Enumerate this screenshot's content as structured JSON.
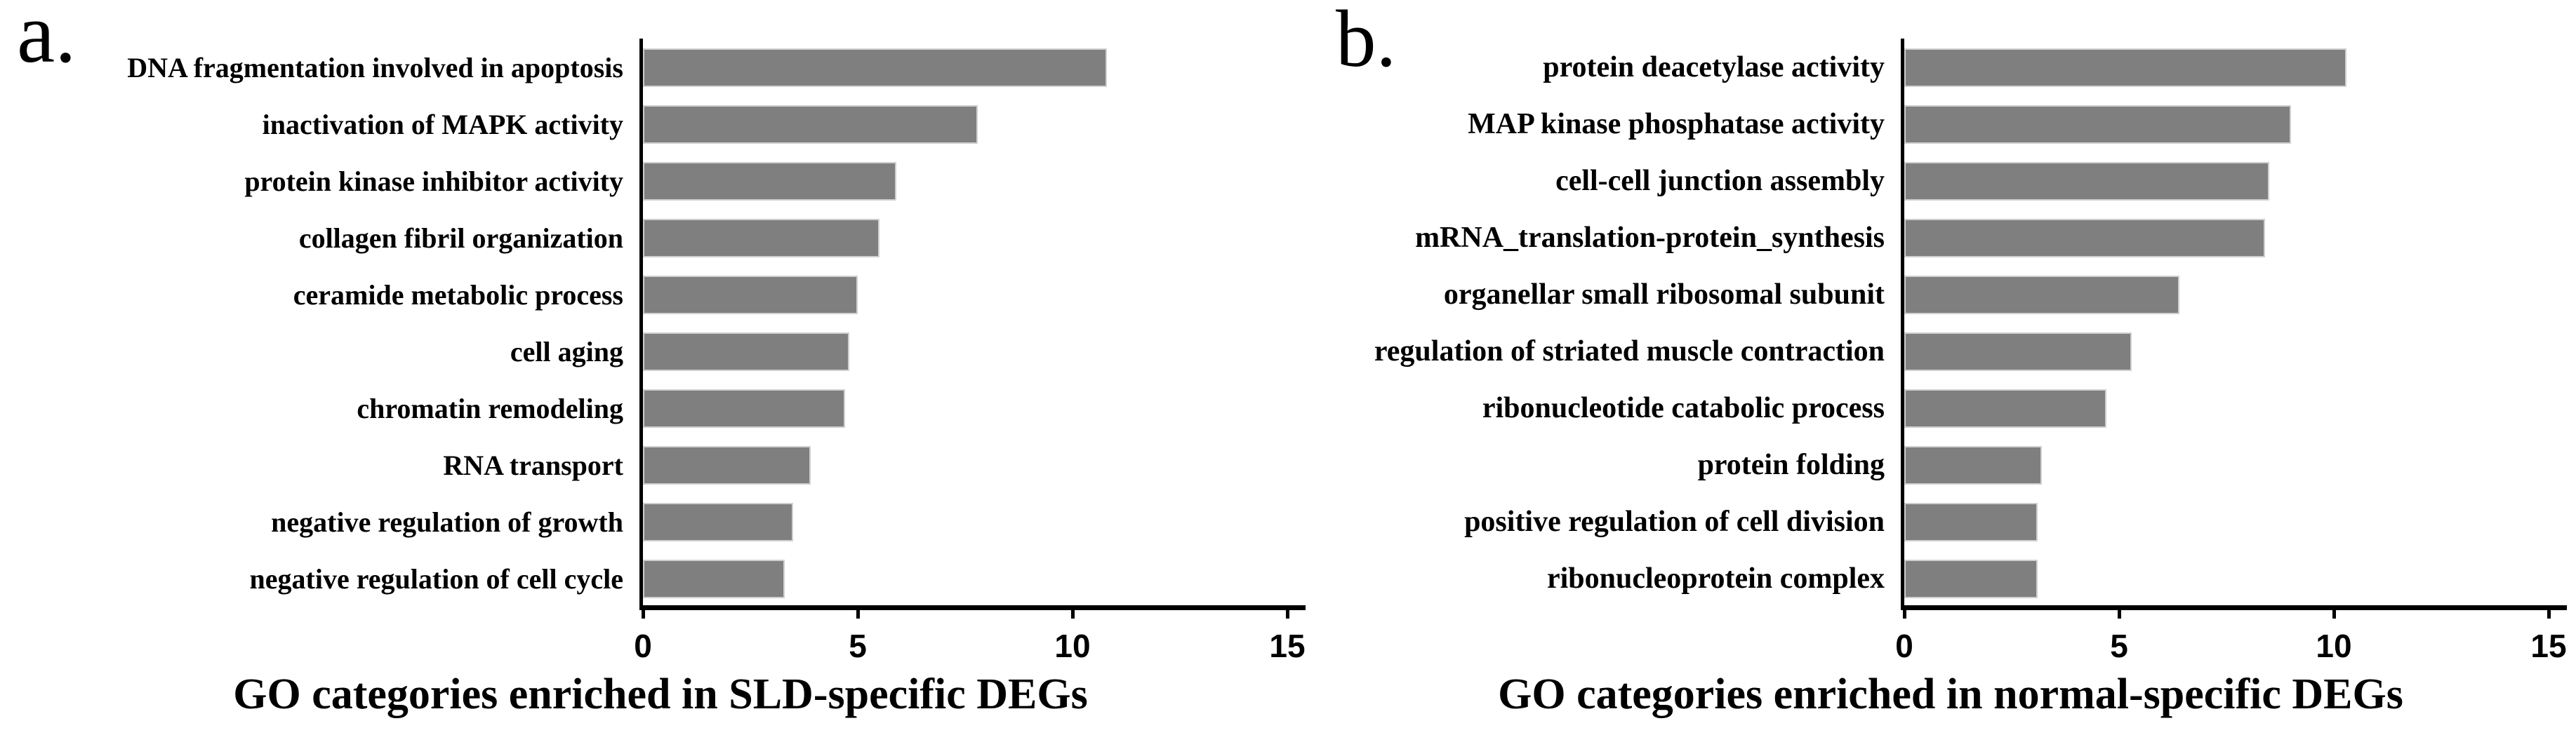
{
  "figure_kind": "two-panel horizontal bar chart of GO enrichment",
  "bar_color": "#7f7f7f",
  "bar_edge_color": "#cfcfcf",
  "axis_color": "#000000",
  "background_color": "#ffffff",
  "chart_data": [
    {
      "type": "bar",
      "orientation": "horizontal",
      "panel_letter": "a.",
      "title": "GO categories enriched in SLD-specific DEGs",
      "categories": [
        "DNA fragmentation involved in apoptosis",
        "inactivation of MAPK activity",
        "protein kinase inhibitor activity",
        "collagen fibril organization",
        "ceramide metabolic process",
        "cell aging",
        "chromatin remodeling",
        "RNA transport",
        "negative regulation of growth",
        "negative regulation of cell cycle"
      ],
      "values": [
        10.8,
        7.8,
        5.9,
        5.5,
        5.0,
        4.8,
        4.7,
        3.9,
        3.5,
        3.3
      ],
      "xlabel": "",
      "ylabel": "",
      "xlim": [
        0,
        15
      ],
      "x_ticks": [
        0,
        5,
        10,
        15
      ],
      "grid": false,
      "legend_position": "none",
      "bar_color": "#7f7f7f"
    },
    {
      "type": "bar",
      "orientation": "horizontal",
      "panel_letter": "b.",
      "title": "GO categories enriched in normal-specific DEGs",
      "categories": [
        "protein deacetylase activity",
        "MAP kinase phosphatase activity",
        "cell-cell junction assembly",
        "mRNA_translation-protein_synthesis",
        "organellar small ribosomal subunit",
        "regulation of striated muscle contraction",
        "ribonucleotide catabolic process",
        "protein folding",
        "positive regulation of cell division",
        "ribonucleoprotein complex"
      ],
      "values": [
        10.3,
        9.0,
        8.5,
        8.4,
        6.4,
        5.3,
        4.7,
        3.2,
        3.1,
        3.1
      ],
      "xlabel": "",
      "ylabel": "",
      "xlim": [
        0,
        15
      ],
      "x_ticks": [
        0,
        5,
        10,
        15
      ],
      "grid": false,
      "legend_position": "none",
      "bar_color": "#7f7f7f"
    }
  ]
}
